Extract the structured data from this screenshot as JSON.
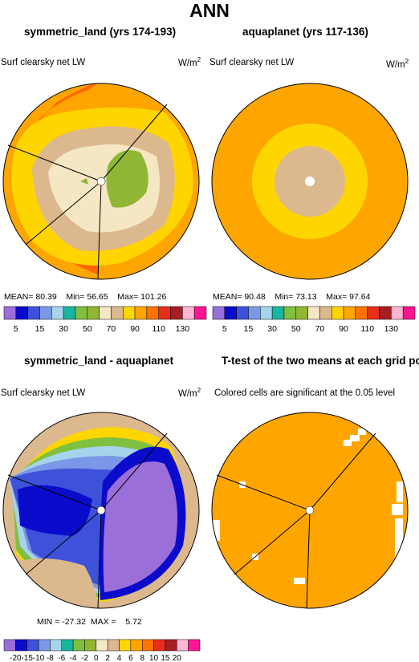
{
  "figure": {
    "title": "ANN"
  },
  "panels": {
    "top_left": {
      "title": "symmetric_land (yrs 174-193)",
      "variable": "Surf clearsky net LW",
      "units": "W/m",
      "units_exp": "2",
      "stats": {
        "mean_label": "MEAN=",
        "mean": "80.39",
        "min_label": "Min=",
        "min": "56.65",
        "max_label": "Max=",
        "max": "101.26"
      }
    },
    "top_right": {
      "title": "aquaplanet (yrs 117-136)",
      "variable": "Surf clearsky net LW",
      "units": "W/m",
      "units_exp": "2",
      "stats": {
        "mean_label": "MEAN=",
        "mean": "90.48",
        "min_label": "Min=",
        "min": "73.13",
        "max_label": "Max=",
        "max": "97.64"
      }
    },
    "bottom_left": {
      "title": "symmetric_land - aquaplanet",
      "variable": "Surf clearsky net LW",
      "units": "W/m",
      "units_exp": "2",
      "stats": {
        "min_label": "MIN =",
        "min": "-27.32",
        "max_label": "MAX =",
        "max": "5.72"
      }
    },
    "bottom_right": {
      "title": "T-test of the two means at each grid point",
      "note": "Colored cells are significant at the 0.05 level"
    }
  },
  "colorbars": {
    "absolute": {
      "colors": [
        "#9b6fd9",
        "#0b0bcc",
        "#3d52d9",
        "#7b98e8",
        "#a6d4ec",
        "#1ab5a0",
        "#80c041",
        "#8fb733",
        "#f5e6c4",
        "#dcb88e",
        "#ffd500",
        "#ffa500",
        "#ff7400",
        "#e62e1a",
        "#a61e24",
        "#ffb6d2",
        "#ff1493"
      ],
      "labels": [
        "5",
        "15",
        "30",
        "50",
        "70",
        "90",
        "110",
        "130"
      ]
    },
    "difference": {
      "colors": [
        "#9b6fd9",
        "#0b0bcc",
        "#3d52d9",
        "#7b98e8",
        "#a6d4ec",
        "#1ab5a0",
        "#80c041",
        "#8fb733",
        "#f5e6c4",
        "#dcb88e",
        "#ffd500",
        "#ffa500",
        "#ff7400",
        "#e62e1a",
        "#a61e24",
        "#ffb6d2",
        "#ff1493"
      ],
      "labels": [
        "-20",
        "-15",
        "-10",
        "-8",
        "-6",
        "-4",
        "-2",
        "0",
        "2",
        "4",
        "6",
        "8",
        "10",
        "15",
        "20"
      ]
    }
  },
  "colors": {
    "orange": "#ffa500",
    "dark_orange": "#ff6600",
    "yellow": "#ffd500",
    "tan": "#dcb88e",
    "cream": "#f5e6c4",
    "green": "#8fb733",
    "purple": "#9b6fd9",
    "navy": "#0b0bcc",
    "royal_blue": "#3d52d9",
    "light_blue": "#7b98e8",
    "pale_blue": "#a6d4ec",
    "teal": "#1ab5a0",
    "lime": "#80c041"
  }
}
